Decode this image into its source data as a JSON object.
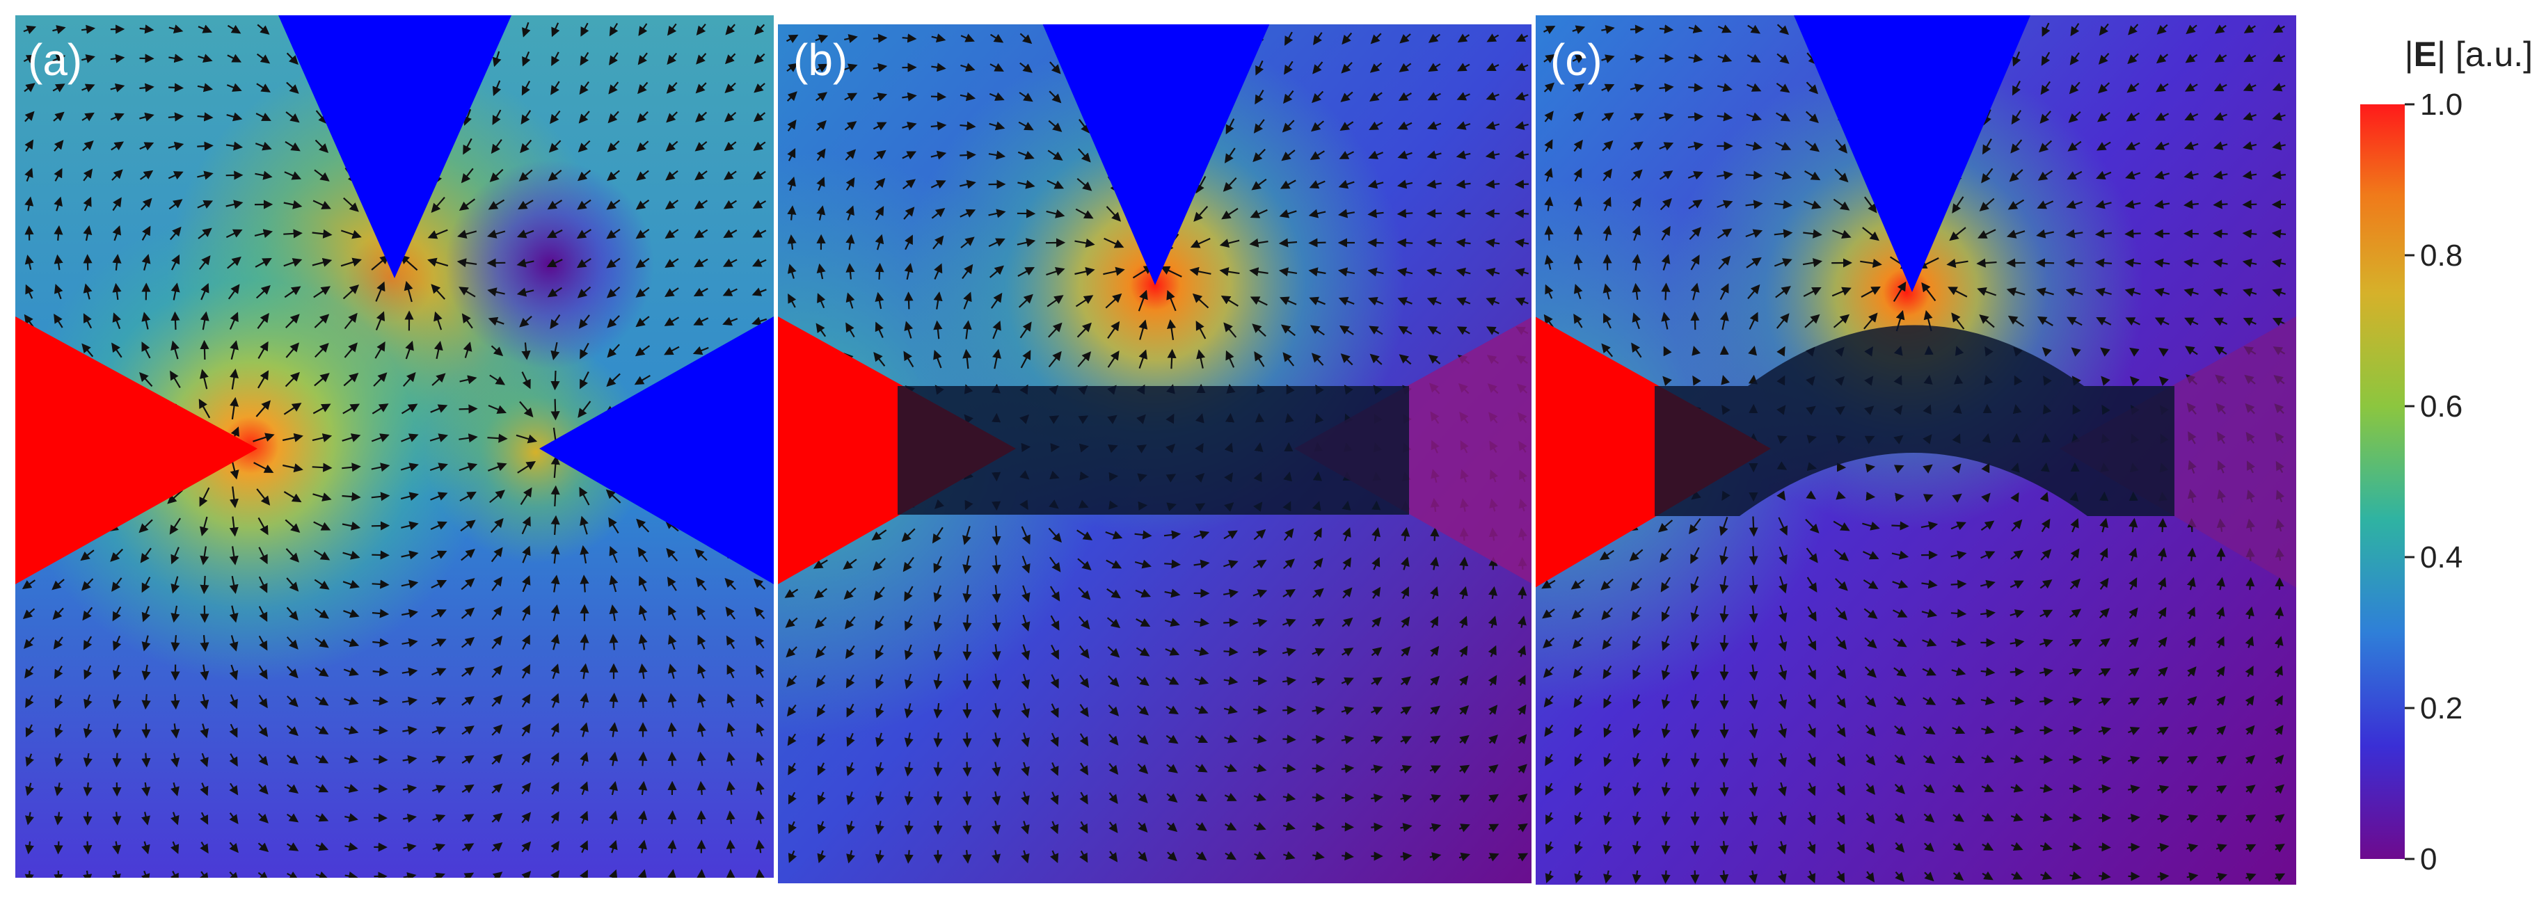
{
  "panels": [
    {
      "label": "(a)",
      "has_object": false
    },
    {
      "label": "(b)",
      "has_object": true,
      "object_shape": "straight"
    },
    {
      "label": "(c)",
      "has_object": true,
      "object_shape": "arched"
    }
  ],
  "colorbar": {
    "title_pre": "|",
    "title_symbol": "E",
    "title_post": "| [a.u.]",
    "ticks": [
      "1.0",
      "0.8",
      "0.6",
      "0.4",
      "0.2",
      "0"
    ],
    "tick_values": [
      1.0,
      0.8,
      0.6,
      0.4,
      0.2,
      0
    ],
    "range": [
      0,
      1
    ],
    "colors": [
      "#6e0a8e",
      "#3a2fd6",
      "#2f7fd8",
      "#2fb3a2",
      "#8cc63f",
      "#d6b12a",
      "#f07a1a",
      "#ff1a1a"
    ]
  },
  "electrode_colors": {
    "positive": "#ff0000",
    "negative": "#0000ff"
  },
  "object_color": "#0a1530"
}
